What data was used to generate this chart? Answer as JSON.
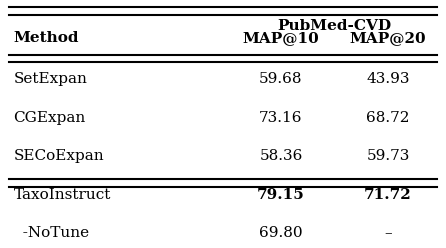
{
  "title_group": "PubMed-CVD",
  "col_headers": [
    "Method",
    "MAP@10",
    "MAP@20"
  ],
  "rows": [
    {
      "method": "SetExpan",
      "map10": "59.68",
      "map20": "43.93",
      "bold10": false,
      "bold20": false
    },
    {
      "method": "CGExpan",
      "map10": "73.16",
      "map20": "68.72",
      "bold10": false,
      "bold20": false
    },
    {
      "method": "SECoExpan",
      "map10": "58.36",
      "map20": "59.73",
      "bold10": false,
      "bold20": false
    },
    {
      "method": "TaxoInstruct",
      "map10": "79.15",
      "map20": "71.72",
      "bold10": true,
      "bold20": true
    },
    {
      "method": "  -NoTune",
      "map10": "69.80",
      "map20": "–",
      "bold10": false,
      "bold20": false
    }
  ],
  "bg_color": "#ffffff",
  "text_color": "#000000",
  "fontsize": 11
}
